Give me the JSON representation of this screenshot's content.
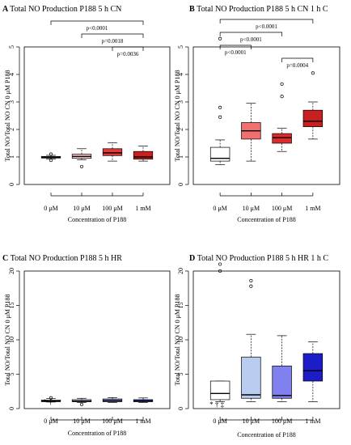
{
  "chart_data": [
    {
      "type": "box",
      "panel": "A",
      "title": "Total NO Production P188 5 h CN",
      "xlabel": "Concentration of P188",
      "ylabel": "Total NO/Total NO CN 0 μM P188",
      "categories": [
        "0 μM",
        "10 μM",
        "100 μM",
        "1 mM"
      ],
      "ylim": [
        0,
        5
      ],
      "yticks": [
        "0",
        "1",
        "2",
        "3",
        "4",
        "5"
      ],
      "colors": [
        "#ffffff",
        "#ffc4c4",
        "#e03a3a",
        "#cc1f1f"
      ],
      "boxes": [
        {
          "whislo": 0.92,
          "q1": 0.96,
          "med": 0.99,
          "q3": 1.02,
          "whishi": 1.06,
          "fliers": [
            0.88,
            1.1
          ]
        },
        {
          "whislo": 0.9,
          "q1": 0.95,
          "med": 1.02,
          "q3": 1.1,
          "whishi": 1.3,
          "fliers": [
            0.65
          ]
        },
        {
          "whislo": 0.85,
          "q1": 1.05,
          "med": 1.15,
          "q3": 1.3,
          "whishi": 1.52,
          "fliers": []
        },
        {
          "whislo": 0.85,
          "q1": 0.92,
          "med": 1.0,
          "q3": 1.2,
          "whishi": 1.4,
          "fliers": []
        }
      ],
      "brackets": [
        {
          "from": 0,
          "to": 3,
          "label": "p<0.0001"
        },
        {
          "from": 1,
          "to": 3,
          "label": "p=0.0018"
        },
        {
          "from": 2,
          "to": 3,
          "label": "p=0.0036"
        }
      ],
      "annotations": []
    },
    {
      "type": "box",
      "panel": "B",
      "title": "Total NO Production P188 5 h CN 1 h C",
      "xlabel": "Concentration of P188",
      "ylabel": "Total NO/Total NO CN 0 μM P188",
      "categories": [
        "0 μM",
        "10 μM",
        "100 μM",
        "1 mM"
      ],
      "ylim": [
        0,
        5
      ],
      "yticks": [
        "0",
        "1",
        "2",
        "3",
        "4",
        "5"
      ],
      "colors": [
        "#ffffff",
        "#f07070",
        "#dd2a2a",
        "#c82020"
      ],
      "boxes": [
        {
          "whislo": 0.72,
          "q1": 0.85,
          "med": 0.95,
          "q3": 1.35,
          "whishi": 1.62,
          "fliers": [
            2.45,
            2.8,
            5.3
          ]
        },
        {
          "whislo": 0.85,
          "q1": 1.65,
          "med": 1.95,
          "q3": 2.25,
          "whishi": 2.95,
          "fliers": []
        },
        {
          "whislo": 1.2,
          "q1": 1.5,
          "med": 1.7,
          "q3": 1.85,
          "whishi": 2.05,
          "fliers": [
            3.2,
            3.65
          ]
        },
        {
          "whislo": 1.65,
          "q1": 2.1,
          "med": 2.3,
          "q3": 2.7,
          "whishi": 3.0,
          "fliers": [
            4.05
          ]
        }
      ],
      "brackets": [
        {
          "from": 0,
          "to": 3,
          "label": "p<0.0001"
        },
        {
          "from": 0,
          "to": 2,
          "label": "p<0.0001"
        },
        {
          "from": 0,
          "to": 1,
          "label": "p<0.0001"
        },
        {
          "from": 2,
          "to": 3,
          "label": "p=0.0004"
        }
      ],
      "annotations": []
    },
    {
      "type": "box",
      "panel": "C",
      "title": "Total NO Production P188 5 h HR",
      "xlabel": "Concentration of P188",
      "ylabel": "Total NO/Total NO CN 0 μM P188",
      "categories": [
        "0 μM",
        "10 μM",
        "100 μM",
        "1 mM"
      ],
      "ylim": [
        0,
        20
      ],
      "yticks": [
        "0",
        "5",
        "10",
        "15",
        "20"
      ],
      "colors": [
        "#ffffff",
        "#c8d4f2",
        "#8f8ff0",
        "#2a35c8"
      ],
      "boxes": [
        {
          "whislo": 0.95,
          "q1": 1.0,
          "med": 1.1,
          "q3": 1.25,
          "whishi": 1.45,
          "fliers": [
            1.55
          ]
        },
        {
          "whislo": 0.9,
          "q1": 1.0,
          "med": 1.1,
          "q3": 1.3,
          "whishi": 1.5,
          "fliers": [
            0.6
          ]
        },
        {
          "whislo": 0.9,
          "q1": 1.0,
          "med": 1.15,
          "q3": 1.4,
          "whishi": 1.6,
          "fliers": []
        },
        {
          "whislo": 0.9,
          "q1": 1.0,
          "med": 1.1,
          "q3": 1.3,
          "whishi": 1.55,
          "fliers": []
        }
      ],
      "brackets": [],
      "annotations": [
        {
          "category": 0,
          "text": "* †"
        }
      ]
    },
    {
      "type": "box",
      "panel": "D",
      "title": "Total NO Production P188 5 h HR 1 h C",
      "xlabel": "Concentration of P188",
      "ylabel": "Total NO/Total NO CN 0 μM P188",
      "categories": [
        "0 μM",
        "10 μM",
        "100 μM",
        "1 mM"
      ],
      "ylim": [
        0,
        20
      ],
      "yticks": [
        "0",
        "5",
        "10",
        "15",
        "20"
      ],
      "colors": [
        "#ffffff",
        "#b8cdf0",
        "#8080ee",
        "#1c1cc8"
      ],
      "boxes": [
        {
          "whislo": 1.0,
          "q1": 1.3,
          "med": 2.2,
          "q3": 4.0,
          "whishi": 4.0,
          "fliers": [
            20.0,
            21.0
          ]
        },
        {
          "whislo": 1.0,
          "q1": 1.5,
          "med": 2.0,
          "q3": 7.5,
          "whishi": 10.8,
          "fliers": [
            17.8,
            18.6
          ]
        },
        {
          "whislo": 1.0,
          "q1": 1.5,
          "med": 1.9,
          "q3": 6.2,
          "whishi": 10.6,
          "fliers": []
        },
        {
          "whislo": 1.0,
          "q1": 4.0,
          "med": 5.5,
          "q3": 8.0,
          "whishi": 9.7,
          "fliers": []
        }
      ],
      "brackets": [],
      "annotations": [
        {
          "category": 0,
          "text": "* † ‡"
        }
      ]
    }
  ]
}
